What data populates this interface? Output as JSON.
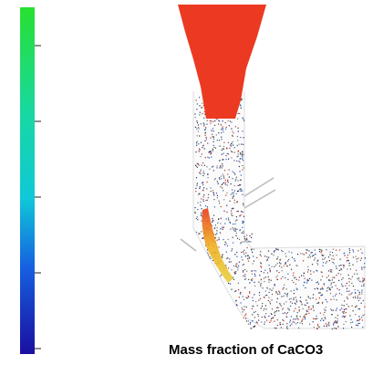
{
  "caption": "Mass fraction of CaCO3"
}
